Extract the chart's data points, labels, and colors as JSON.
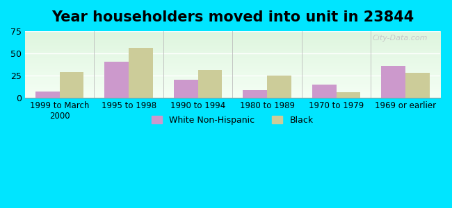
{
  "title": "Year householders moved into unit in 23844",
  "categories": [
    "1999 to March\n2000",
    "1995 to 1998",
    "1990 to 1994",
    "1980 to 1989",
    "1970 to 1979",
    "1969 or earlier"
  ],
  "white_non_hispanic": [
    7,
    41,
    20,
    9,
    15,
    36
  ],
  "black": [
    29,
    56,
    31,
    25,
    6,
    28
  ],
  "white_color": "#cc99cc",
  "black_color": "#cccc99",
  "ylim": [
    0,
    75
  ],
  "yticks": [
    0,
    25,
    50,
    75
  ],
  "bar_width": 0.35,
  "outer_bg": "#00e5ff",
  "title_fontsize": 15,
  "legend_labels": [
    "White Non-Hispanic",
    "Black"
  ],
  "watermark": "City-Data.com"
}
